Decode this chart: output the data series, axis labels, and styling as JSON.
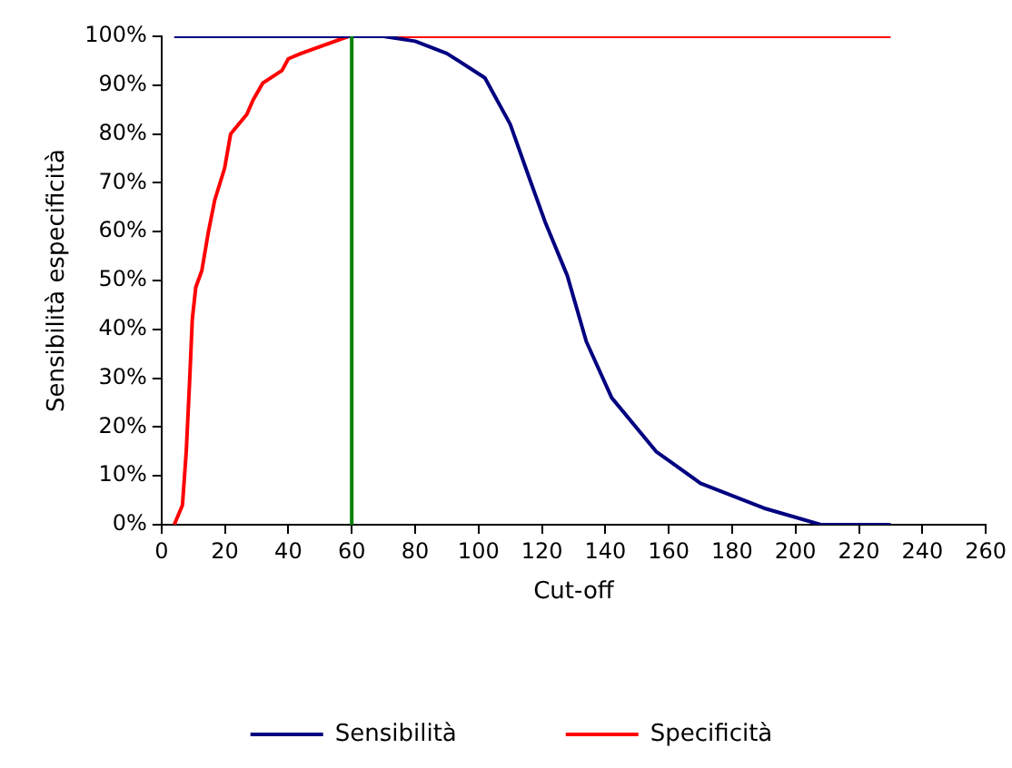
{
  "chart_data": {
    "type": "line",
    "xlabel": "Cut-off",
    "ylabel": "Sensibilità especificità",
    "xlim": [
      0,
      260
    ],
    "xticks": [
      0,
      20,
      40,
      60,
      80,
      100,
      120,
      140,
      160,
      180,
      200,
      220,
      240,
      260
    ],
    "ylim": [
      0,
      100
    ],
    "yticks": [
      {
        "value": 0,
        "label": "0%"
      },
      {
        "value": 10,
        "label": "10%"
      },
      {
        "value": 20,
        "label": "20%"
      },
      {
        "value": 30,
        "label": "30%"
      },
      {
        "value": 40,
        "label": "40%"
      },
      {
        "value": 50,
        "label": "50%"
      },
      {
        "value": 60,
        "label": "60%"
      },
      {
        "value": 70,
        "label": "70%"
      },
      {
        "value": 80,
        "label": "80%"
      },
      {
        "value": 90,
        "label": "90%"
      },
      {
        "value": 100,
        "label": "100%"
      }
    ],
    "grid": false,
    "legend": "bottom",
    "marker": "none",
    "line_style": "solid",
    "series": [
      {
        "name": "Sensibilità",
        "color": "#000080",
        "x": [
          4,
          60,
          70,
          80,
          90,
          102,
          110,
          116,
          121,
          128,
          134,
          142,
          156,
          170,
          190,
          208,
          230
        ],
        "values": [
          100,
          100,
          100,
          99,
          96.5,
          91.5,
          82,
          71,
          62,
          51,
          37.5,
          26,
          15,
          8.5,
          3.4,
          0,
          0
        ]
      },
      {
        "name": "Specificità",
        "color": "#ff0000",
        "x": [
          4,
          6.6,
          7.8,
          8.8,
          9.7,
          10.8,
          12.7,
          14.8,
          16.8,
          19.9,
          21.8,
          26.9,
          28.9,
          31.9,
          38,
          40,
          44,
          59,
          230
        ],
        "values": [
          0,
          4,
          15,
          28.5,
          42,
          48.6,
          52,
          60,
          66.5,
          73,
          80,
          84,
          87,
          90.4,
          93,
          95.4,
          96.5,
          100,
          100
        ]
      }
    ],
    "ref_lines": [
      {
        "axis": "x",
        "value": 60,
        "color": "#008000"
      }
    ]
  }
}
